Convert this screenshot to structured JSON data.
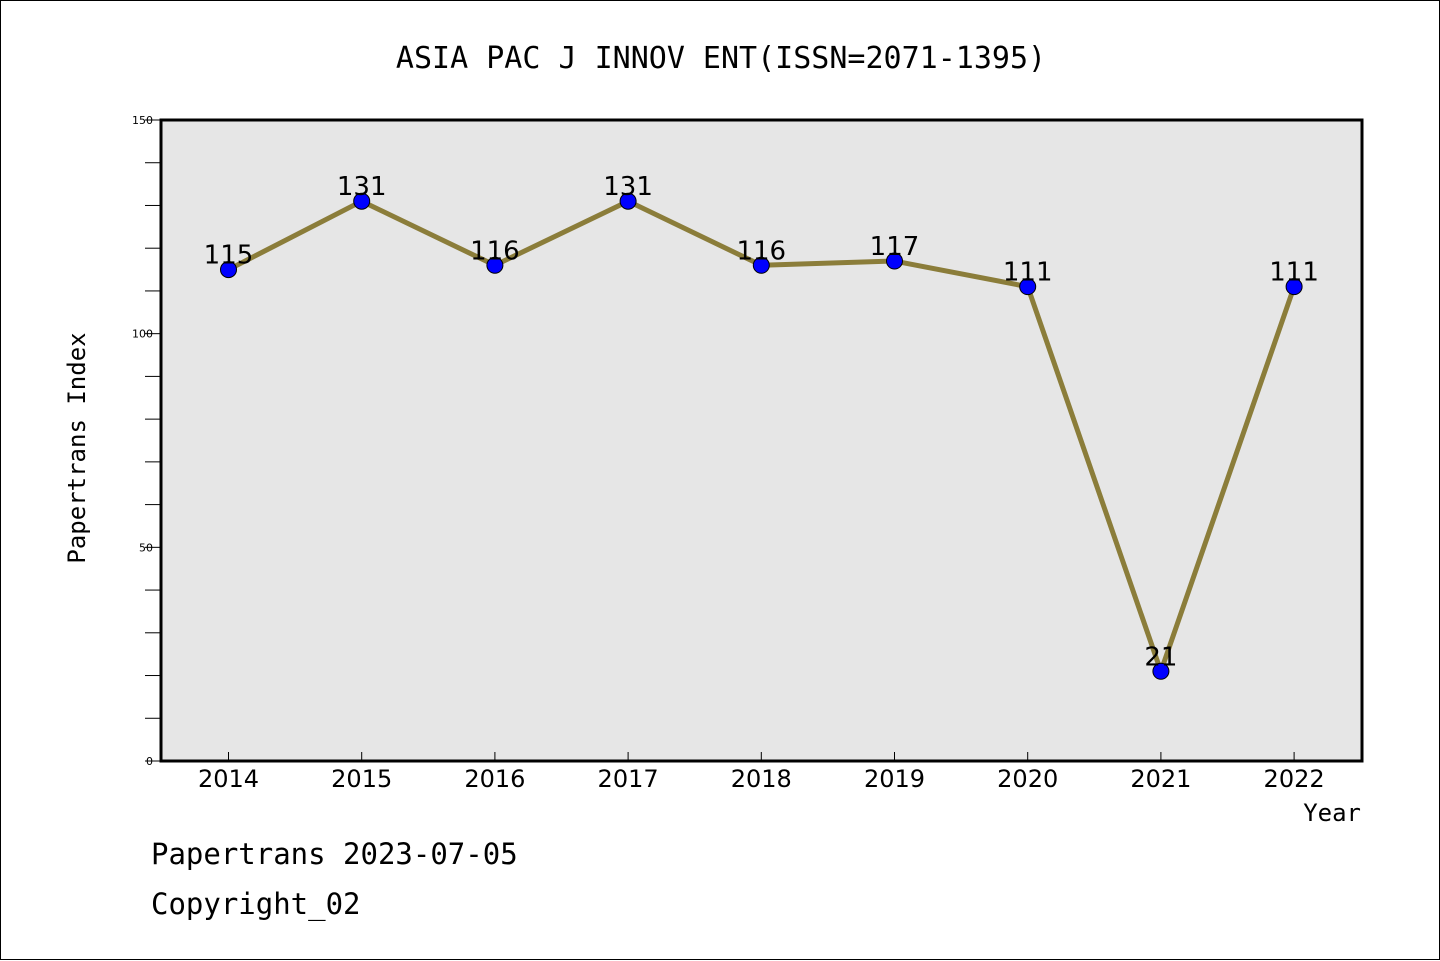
{
  "footer": {
    "line1": "Papertrans 2023-07-05",
    "line2": "Copyright_02"
  },
  "colors": {
    "line": "#8b7d3a",
    "marker": "#0000ff",
    "plot_background": "#e6e6e6"
  },
  "chart_data": {
    "type": "line",
    "title": "ASIA PAC J INNOV ENT(ISSN=2071-1395)",
    "xlabel": "Year",
    "ylabel": "Papertrans Index",
    "categories": [
      "2014",
      "2015",
      "2016",
      "2017",
      "2018",
      "2019",
      "2020",
      "2021",
      "2022"
    ],
    "values": [
      115,
      131,
      116,
      131,
      116,
      117,
      111,
      21,
      111
    ],
    "data_labels": [
      "115",
      "131",
      "116",
      "131",
      "116",
      "117",
      "111",
      "21",
      "111"
    ],
    "ylim": [
      0,
      150
    ],
    "yticks": [
      0,
      50,
      100,
      150
    ],
    "y_minor_step": 10,
    "grid": false,
    "legend": "none"
  }
}
